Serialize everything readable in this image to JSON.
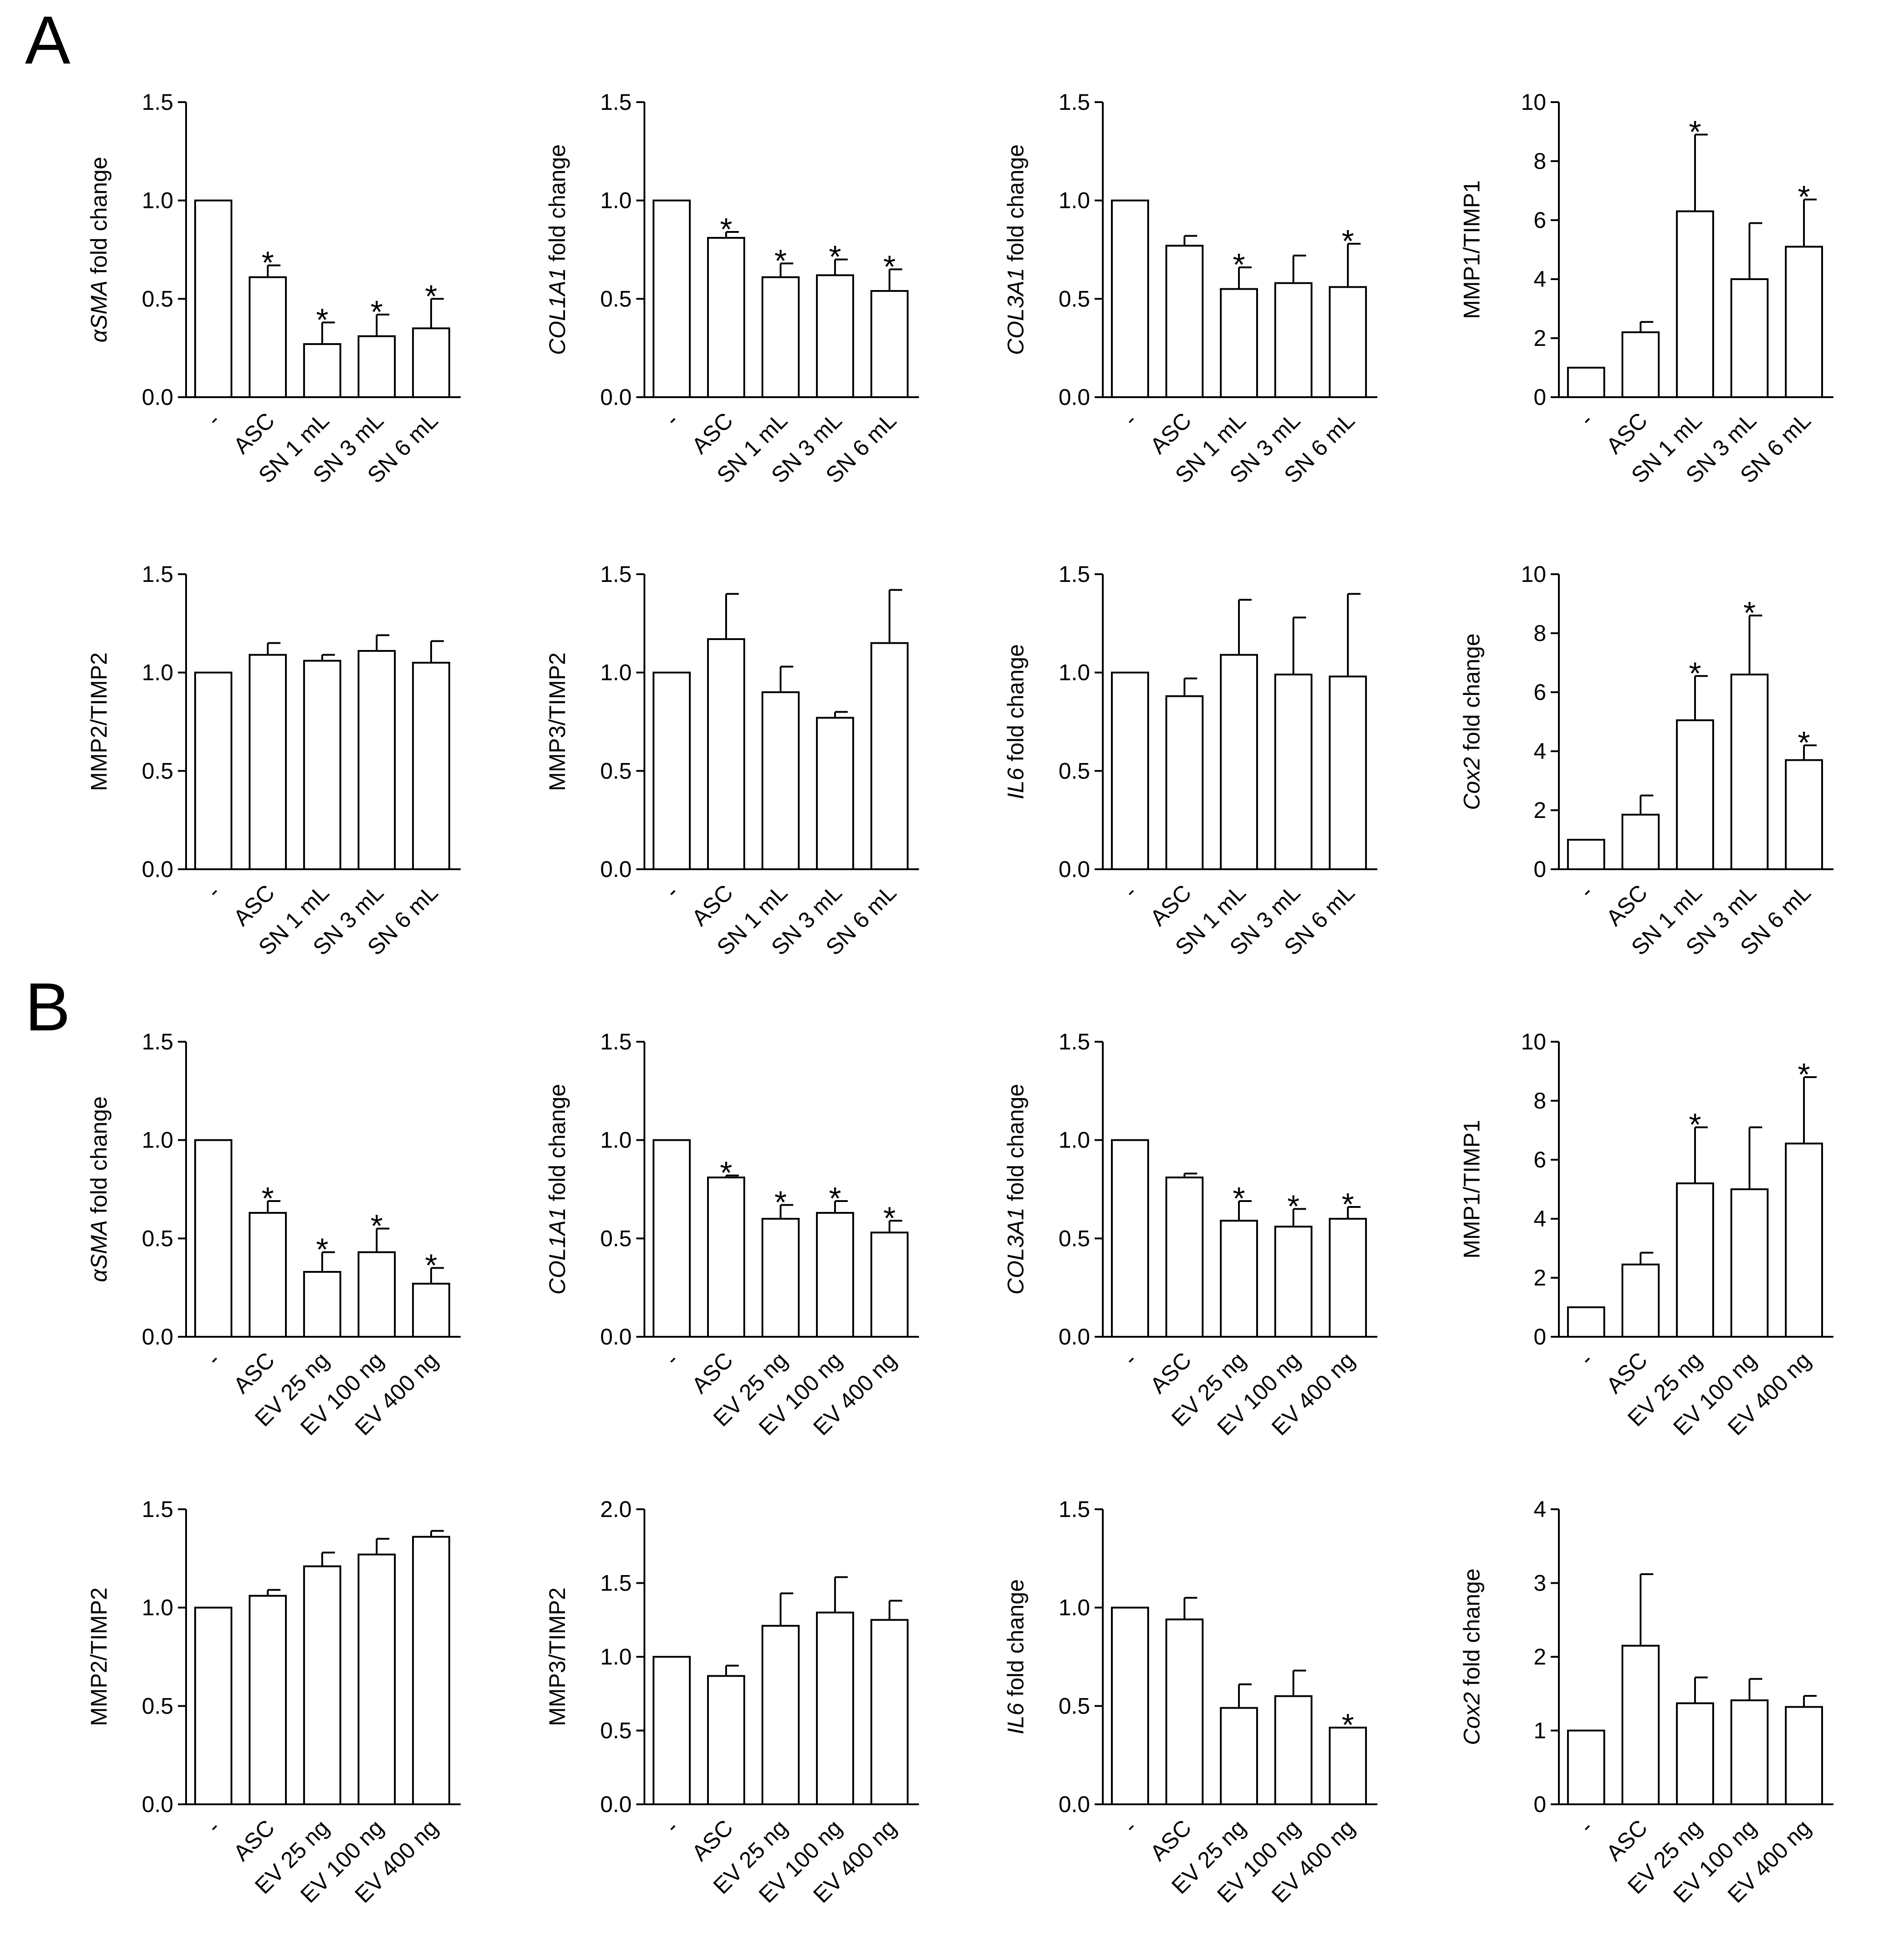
{
  "panels": [
    "A",
    "B"
  ],
  "colors": {
    "bar_fill": "#ffffff",
    "stroke": "#000000"
  },
  "chart_data": [
    {
      "type": "bar",
      "panel": "A",
      "ylabel": "αSMA fold change",
      "ylabel_parts": [
        {
          "t": "αSMA",
          "i": true
        },
        {
          "t": " fold change",
          "i": false
        }
      ],
      "ylim": [
        0,
        1.5
      ],
      "yticks": [
        "0.0",
        "0.5",
        "1.0",
        "1.5"
      ],
      "categories": [
        "-",
        "ASC",
        "SN 1 mL",
        "SN 3 mL",
        "SN 6 mL"
      ],
      "values": [
        1.0,
        0.61,
        0.27,
        0.31,
        0.35
      ],
      "errors": [
        0,
        0.06,
        0.11,
        0.11,
        0.15
      ],
      "significance": [
        "",
        "*",
        "*",
        "*",
        "*"
      ]
    },
    {
      "type": "bar",
      "panel": "A",
      "ylabel": "COL1A1 fold change",
      "ylabel_parts": [
        {
          "t": "COL1A1",
          "i": true
        },
        {
          "t": " fold change",
          "i": false
        }
      ],
      "ylim": [
        0,
        1.5
      ],
      "yticks": [
        "0.0",
        "0.5",
        "1.0",
        "1.5"
      ],
      "categories": [
        "-",
        "ASC",
        "SN 1 mL",
        "SN 3 mL",
        "SN 6 mL"
      ],
      "values": [
        1.0,
        0.81,
        0.61,
        0.62,
        0.54
      ],
      "errors": [
        0,
        0.03,
        0.07,
        0.08,
        0.11
      ],
      "significance": [
        "",
        "*",
        "*",
        "*",
        "*"
      ]
    },
    {
      "type": "bar",
      "panel": "A",
      "ylabel": "COL3A1 fold change",
      "ylabel_parts": [
        {
          "t": "COL3A1",
          "i": true
        },
        {
          "t": " fold change",
          "i": false
        }
      ],
      "ylim": [
        0,
        1.5
      ],
      "yticks": [
        "0.0",
        "0.5",
        "1.0",
        "1.5"
      ],
      "categories": [
        "-",
        "ASC",
        "SN 1 mL",
        "SN 3 mL",
        "SN 6 mL"
      ],
      "values": [
        1.0,
        0.77,
        0.55,
        0.58,
        0.56
      ],
      "errors": [
        0,
        0.05,
        0.11,
        0.14,
        0.22
      ],
      "significance": [
        "",
        "",
        "*",
        "",
        "*"
      ]
    },
    {
      "type": "bar",
      "panel": "A",
      "ylabel": "MMP1/TIMP1",
      "ylabel_parts": [
        {
          "t": "MMP1/TIMP1",
          "i": false
        }
      ],
      "ylim": [
        0,
        10
      ],
      "yticks": [
        "0",
        "2",
        "4",
        "6",
        "8",
        "10"
      ],
      "categories": [
        "-",
        "ASC",
        "SN 1 mL",
        "SN 3 mL",
        "SN 6 mL"
      ],
      "values": [
        1.0,
        2.2,
        6.3,
        4.0,
        5.1
      ],
      "errors": [
        0,
        0.35,
        2.6,
        1.9,
        1.6
      ],
      "significance": [
        "",
        "",
        "*",
        "",
        "*"
      ]
    },
    {
      "type": "bar",
      "panel": "A",
      "ylabel": "MMP2/TIMP2",
      "ylabel_parts": [
        {
          "t": "MMP2/TIMP2",
          "i": false
        }
      ],
      "ylim": [
        0,
        1.5
      ],
      "yticks": [
        "0.0",
        "0.5",
        "1.0",
        "1.5"
      ],
      "categories": [
        "-",
        "ASC",
        "SN 1 mL",
        "SN 3 mL",
        "SN 6 mL"
      ],
      "values": [
        1.0,
        1.09,
        1.06,
        1.11,
        1.05
      ],
      "errors": [
        0,
        0.06,
        0.03,
        0.08,
        0.11
      ],
      "significance": [
        "",
        "",
        "",
        "",
        ""
      ]
    },
    {
      "type": "bar",
      "panel": "A",
      "ylabel": "MMP3/TIMP2",
      "ylabel_parts": [
        {
          "t": "MMP3/TIMP2",
          "i": false
        }
      ],
      "ylim": [
        0,
        1.5
      ],
      "yticks": [
        "0.0",
        "0.5",
        "1.0",
        "1.5"
      ],
      "categories": [
        "-",
        "ASC",
        "SN 1 mL",
        "SN 3 mL",
        "SN 6 mL"
      ],
      "values": [
        1.0,
        1.17,
        0.9,
        0.77,
        1.15
      ],
      "errors": [
        0,
        0.23,
        0.13,
        0.03,
        0.27
      ],
      "significance": [
        "",
        "",
        "",
        "",
        ""
      ]
    },
    {
      "type": "bar",
      "panel": "A",
      "ylabel": "IL6 fold change",
      "ylabel_parts": [
        {
          "t": "IL6",
          "i": true
        },
        {
          "t": " fold change",
          "i": false
        }
      ],
      "ylim": [
        0,
        1.5
      ],
      "yticks": [
        "0.0",
        "0.5",
        "1.0",
        "1.5"
      ],
      "categories": [
        "-",
        "ASC",
        "SN 1 mL",
        "SN 3 mL",
        "SN 6 mL"
      ],
      "values": [
        1.0,
        0.88,
        1.09,
        0.99,
        0.98
      ],
      "errors": [
        0,
        0.09,
        0.28,
        0.29,
        0.42
      ],
      "significance": [
        "",
        "",
        "",
        "",
        ""
      ]
    },
    {
      "type": "bar",
      "panel": "A",
      "ylabel": "Cox2 fold change",
      "ylabel_parts": [
        {
          "t": "Cox2",
          "i": true
        },
        {
          "t": " fold change",
          "i": false
        }
      ],
      "ylim": [
        0,
        10
      ],
      "yticks": [
        "0",
        "2",
        "4",
        "6",
        "8",
        "10"
      ],
      "categories": [
        "-",
        "ASC",
        "SN 1 mL",
        "SN 3 mL",
        "SN 6 mL"
      ],
      "values": [
        1.0,
        1.85,
        5.05,
        6.6,
        3.7
      ],
      "errors": [
        0,
        0.65,
        1.5,
        2.0,
        0.5
      ],
      "significance": [
        "",
        "",
        "*",
        "*",
        "*"
      ]
    },
    {
      "type": "bar",
      "panel": "B",
      "ylabel": "αSMA fold change",
      "ylabel_parts": [
        {
          "t": "αSMA",
          "i": true
        },
        {
          "t": " fold change",
          "i": false
        }
      ],
      "ylim": [
        0,
        1.5
      ],
      "yticks": [
        "0.0",
        "0.5",
        "1.0",
        "1.5"
      ],
      "categories": [
        "-",
        "ASC",
        "EV 25 ng",
        "EV 100 ng",
        "EV 400 ng"
      ],
      "values": [
        1.0,
        0.63,
        0.33,
        0.43,
        0.27
      ],
      "errors": [
        0,
        0.06,
        0.1,
        0.12,
        0.08
      ],
      "significance": [
        "",
        "*",
        "*",
        "*",
        "*"
      ]
    },
    {
      "type": "bar",
      "panel": "B",
      "ylabel": "COL1A1 fold change",
      "ylabel_parts": [
        {
          "t": "COL1A1",
          "i": true
        },
        {
          "t": " fold change",
          "i": false
        }
      ],
      "ylim": [
        0,
        1.5
      ],
      "yticks": [
        "0.0",
        "0.5",
        "1.0",
        "1.5"
      ],
      "categories": [
        "-",
        "ASC",
        "EV 25 ng",
        "EV 100 ng",
        "EV 400 ng"
      ],
      "values": [
        1.0,
        0.81,
        0.6,
        0.63,
        0.53
      ],
      "errors": [
        0,
        0.01,
        0.07,
        0.06,
        0.06
      ],
      "significance": [
        "",
        "*",
        "*",
        "*",
        "*"
      ]
    },
    {
      "type": "bar",
      "panel": "B",
      "ylabel": "COL3A1 fold change",
      "ylabel_parts": [
        {
          "t": "COL3A1",
          "i": true
        },
        {
          "t": " fold change",
          "i": false
        }
      ],
      "ylim": [
        0,
        1.5
      ],
      "yticks": [
        "0.0",
        "0.5",
        "1.0",
        "1.5"
      ],
      "categories": [
        "-",
        "ASC",
        "EV 25 ng",
        "EV 100 ng",
        "EV 400 ng"
      ],
      "values": [
        1.0,
        0.81,
        0.59,
        0.56,
        0.6
      ],
      "errors": [
        0,
        0.02,
        0.1,
        0.09,
        0.06
      ],
      "significance": [
        "",
        "",
        "*",
        "*",
        "*"
      ]
    },
    {
      "type": "bar",
      "panel": "B",
      "ylabel": "MMP1/TIMP1",
      "ylabel_parts": [
        {
          "t": "MMP1/TIMP1",
          "i": false
        }
      ],
      "ylim": [
        0,
        10
      ],
      "yticks": [
        "0",
        "2",
        "4",
        "6",
        "8",
        "10"
      ],
      "categories": [
        "-",
        "ASC",
        "EV 25 ng",
        "EV 100 ng",
        "EV 400 ng"
      ],
      "values": [
        1.0,
        2.45,
        5.2,
        5.0,
        6.55
      ],
      "errors": [
        0,
        0.4,
        1.9,
        2.1,
        2.25
      ],
      "significance": [
        "",
        "",
        "*",
        "",
        "*"
      ]
    },
    {
      "type": "bar",
      "panel": "B",
      "ylabel": "MMP2/TIMP2",
      "ylabel_parts": [
        {
          "t": "MMP2/TIMP2",
          "i": false
        }
      ],
      "ylim": [
        0,
        1.5
      ],
      "yticks": [
        "0.0",
        "0.5",
        "1.0",
        "1.5"
      ],
      "categories": [
        "-",
        "ASC",
        "EV 25 ng",
        "EV 100 ng",
        "EV 400 ng"
      ],
      "values": [
        1.0,
        1.06,
        1.21,
        1.27,
        1.36
      ],
      "errors": [
        0,
        0.03,
        0.07,
        0.08,
        0.03
      ],
      "significance": [
        "",
        "",
        "",
        "",
        ""
      ]
    },
    {
      "type": "bar",
      "panel": "B",
      "ylabel": "MMP3/TIMP2",
      "ylabel_parts": [
        {
          "t": "MMP3/TIMP2",
          "i": false
        }
      ],
      "ylim": [
        0,
        2.0
      ],
      "yticks": [
        "0.0",
        "0.5",
        "1.0",
        "1.5",
        "2.0"
      ],
      "categories": [
        "-",
        "ASC",
        "EV 25 ng",
        "EV 100 ng",
        "EV 400 ng"
      ],
      "values": [
        1.0,
        0.87,
        1.21,
        1.3,
        1.25
      ],
      "errors": [
        0,
        0.07,
        0.22,
        0.24,
        0.13
      ],
      "significance": [
        "",
        "",
        "",
        "",
        ""
      ]
    },
    {
      "type": "bar",
      "panel": "B",
      "ylabel": "IL6 fold change",
      "ylabel_parts": [
        {
          "t": "IL6",
          "i": true
        },
        {
          "t": " fold change",
          "i": false
        }
      ],
      "ylim": [
        0,
        1.5
      ],
      "yticks": [
        "0.0",
        "0.5",
        "1.0",
        "1.5"
      ],
      "categories": [
        "-",
        "ASC",
        "EV 25 ng",
        "EV 100 ng",
        "EV 400 ng"
      ],
      "values": [
        1.0,
        0.94,
        0.49,
        0.55,
        0.39
      ],
      "errors": [
        0,
        0.11,
        0.12,
        0.13,
        0.0
      ],
      "significance": [
        "",
        "",
        "",
        "",
        "*"
      ]
    },
    {
      "type": "bar",
      "panel": "B",
      "ylabel": "Cox2 fold change",
      "ylabel_parts": [
        {
          "t": "Cox2",
          "i": true
        },
        {
          "t": " fold change",
          "i": false
        }
      ],
      "ylim": [
        0,
        4
      ],
      "yticks": [
        "0",
        "1",
        "2",
        "3",
        "4"
      ],
      "categories": [
        "-",
        "ASC",
        "EV 25 ng",
        "EV 100 ng",
        "EV 400 ng"
      ],
      "values": [
        1.0,
        2.15,
        1.37,
        1.41,
        1.32
      ],
      "errors": [
        0,
        0.97,
        0.35,
        0.29,
        0.15
      ],
      "significance": [
        "",
        "",
        "",
        "",
        ""
      ]
    }
  ]
}
